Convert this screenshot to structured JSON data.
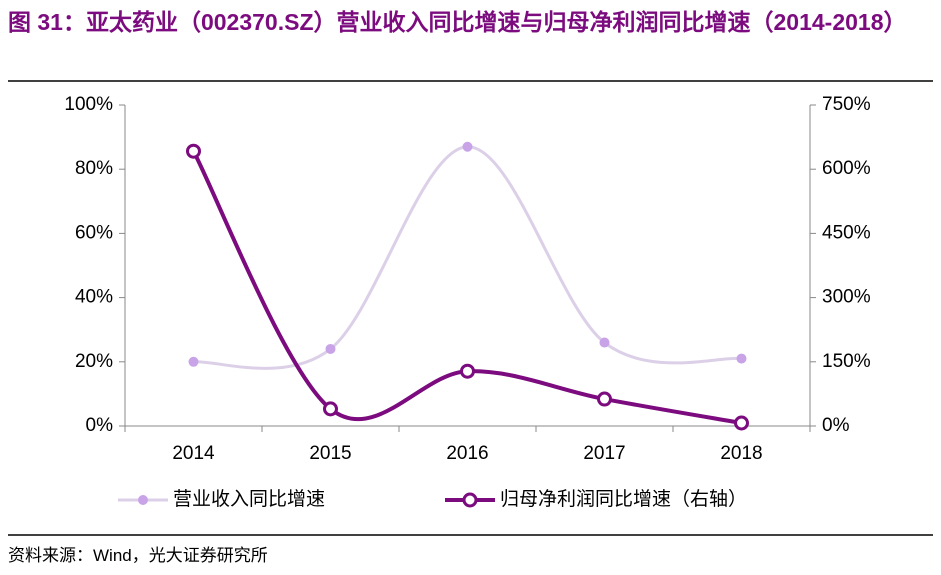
{
  "chart_data": {
    "type": "line",
    "title": "图 31：亚太药业（002370.SZ）营业收入同比增速与归母净利润同比增速（2014-2018）",
    "categories": [
      "2014",
      "2015",
      "2016",
      "2017",
      "2018"
    ],
    "series": [
      {
        "name": "营业收入同比增速",
        "color": "#dcd0e8",
        "marker_color": "#c9a3e8",
        "values": [
          20,
          24,
          87,
          26,
          21
        ]
      },
      {
        "name": "归母净利润同比增速（右轴）",
        "color": "#7b0b7e",
        "marker_color": "#7b0b7e",
        "axis": "y2",
        "values": [
          642,
          40,
          128,
          63,
          7
        ]
      }
    ],
    "ylim": [
      0,
      100
    ],
    "yticks": [
      {
        "value": 0,
        "label": "0%"
      },
      {
        "value": 20,
        "label": "20%"
      },
      {
        "value": 40,
        "label": "40%"
      },
      {
        "value": 60,
        "label": "60%"
      },
      {
        "value": 80,
        "label": "80%"
      },
      {
        "value": 100,
        "label": "100%"
      }
    ],
    "y2lim": [
      0,
      750
    ],
    "y2ticks": [
      {
        "value": 0,
        "label": "0%"
      },
      {
        "value": 150,
        "label": "150%"
      },
      {
        "value": 300,
        "label": "300%"
      },
      {
        "value": 450,
        "label": "450%"
      },
      {
        "value": 600,
        "label": "600%"
      },
      {
        "value": 750,
        "label": "750%"
      }
    ],
    "grid": false,
    "smooth": true,
    "legend": "bottom",
    "source": "资料来源：Wind，光大证券研究所"
  }
}
